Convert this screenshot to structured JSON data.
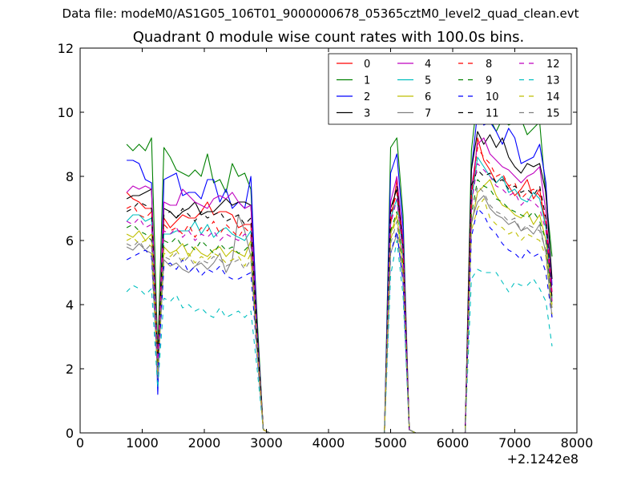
{
  "suptitle": "Data file: modeM0/AS1G05_106T01_9000000678_05365cztM0_level2_quad_clean.evt",
  "chart_data": {
    "type": "line",
    "title": "Quadrant 0 module wise count rates with 100.0s bins.",
    "xlabel": "",
    "ylabel": "",
    "x_offset_label": "+2.1242e8",
    "xlim": [
      0,
      8000
    ],
    "ylim": [
      0,
      12
    ],
    "xticks": [
      0,
      1000,
      2000,
      3000,
      4000,
      5000,
      6000,
      7000,
      8000
    ],
    "yticks": [
      0,
      2,
      4,
      6,
      8,
      10,
      12
    ],
    "grid": false,
    "legend_position": "top-right",
    "legend_columns": 4,
    "x": [
      750,
      850,
      950,
      1050,
      1150,
      1250,
      1350,
      1450,
      1550,
      1650,
      1750,
      1850,
      1950,
      2050,
      2150,
      2250,
      2350,
      2450,
      2550,
      2650,
      2750,
      2850,
      2950,
      3050,
      3150,
      4900,
      5000,
      5100,
      5200,
      5300,
      5400,
      6200,
      6300,
      6400,
      6500,
      6600,
      6700,
      6800,
      6900,
      7000,
      7100,
      7200,
      7300,
      7400,
      7500,
      7600
    ],
    "series": [
      {
        "name": "0",
        "color": "#ff0000",
        "dash": "solid",
        "values": [
          7.5,
          7.3,
          7.2,
          7.0,
          7.0,
          2.5,
          6.7,
          6.4,
          6.6,
          6.8,
          6.7,
          6.7,
          6.9,
          7.2,
          6.8,
          6.9,
          6.9,
          6.8,
          6.4,
          6.5,
          6.5,
          3.0,
          0.1,
          0.0,
          0.0,
          0.0,
          6.5,
          7.9,
          6.0,
          0.1,
          0.0,
          0.0,
          7.0,
          9.2,
          8.5,
          8.2,
          7.8,
          8.0,
          7.7,
          7.4,
          7.6,
          7.9,
          7.3,
          7.6,
          6.4,
          4.1
        ]
      },
      {
        "name": "1",
        "color": "#008000",
        "dash": "solid",
        "values": [
          9.0,
          8.8,
          9.0,
          8.8,
          9.2,
          2.5,
          8.9,
          8.6,
          8.2,
          8.1,
          8.0,
          8.2,
          8.0,
          8.7,
          7.8,
          7.9,
          7.5,
          8.4,
          8.0,
          8.1,
          7.6,
          3.6,
          0.1,
          0.0,
          0.0,
          0.0,
          8.9,
          9.2,
          6.8,
          0.1,
          0.0,
          0.0,
          8.8,
          10.5,
          10.2,
          9.8,
          9.4,
          9.8,
          9.6,
          9.7,
          9.8,
          9.3,
          9.5,
          9.7,
          7.4,
          5.5
        ]
      },
      {
        "name": "2",
        "color": "#0000ff",
        "dash": "solid",
        "values": [
          8.5,
          8.5,
          8.4,
          7.9,
          7.8,
          1.2,
          7.9,
          8.0,
          8.1,
          7.4,
          7.5,
          7.5,
          7.3,
          7.9,
          7.9,
          7.2,
          7.6,
          7.0,
          7.2,
          7.0,
          8.0,
          3.3,
          0.1,
          0.0,
          0.0,
          0.0,
          8.1,
          8.7,
          6.4,
          0.1,
          0.0,
          0.0,
          8.2,
          10.0,
          9.6,
          9.7,
          9.4,
          9.0,
          9.5,
          9.2,
          8.4,
          8.5,
          8.6,
          9.0,
          7.8,
          4.6
        ]
      },
      {
        "name": "3",
        "color": "#000000",
        "dash": "solid",
        "values": [
          7.3,
          7.4,
          7.4,
          7.5,
          7.6,
          2.0,
          7.0,
          6.9,
          6.7,
          6.9,
          7.0,
          7.2,
          6.8,
          6.9,
          6.9,
          7.1,
          7.3,
          7.1,
          7.2,
          7.2,
          7.1,
          3.2,
          0.1,
          0.0,
          0.0,
          0.0,
          7.0,
          7.6,
          5.9,
          0.1,
          0.0,
          0.0,
          8.2,
          9.4,
          9.0,
          9.3,
          8.9,
          9.2,
          8.6,
          8.3,
          8.1,
          8.4,
          8.3,
          8.4,
          7.5,
          4.8
        ]
      },
      {
        "name": "4",
        "color": "#bf00bf",
        "dash": "solid",
        "values": [
          7.5,
          7.7,
          7.6,
          7.7,
          7.6,
          2.2,
          7.2,
          7.1,
          7.1,
          7.6,
          7.4,
          7.2,
          7.1,
          7.0,
          7.3,
          7.4,
          7.3,
          7.5,
          7.2,
          7.0,
          7.1,
          3.1,
          0.1,
          0.0,
          0.0,
          0.0,
          7.2,
          8.0,
          6.0,
          0.1,
          0.0,
          0.0,
          7.6,
          9.0,
          9.2,
          8.7,
          8.5,
          8.3,
          8.2,
          8.0,
          7.8,
          8.0,
          8.1,
          8.3,
          6.9,
          4.4
        ]
      },
      {
        "name": "5",
        "color": "#00bfbf",
        "dash": "solid",
        "values": [
          6.6,
          6.8,
          6.8,
          6.6,
          6.7,
          2.1,
          6.2,
          6.2,
          6.3,
          6.3,
          6.3,
          6.6,
          6.2,
          6.5,
          6.1,
          6.3,
          6.4,
          6.2,
          6.1,
          6.0,
          6.3,
          2.9,
          0.1,
          0.0,
          0.0,
          0.0,
          6.7,
          7.3,
          5.5,
          0.1,
          0.0,
          0.0,
          7.2,
          8.6,
          8.3,
          8.0,
          7.8,
          8.0,
          7.5,
          7.6,
          7.3,
          7.2,
          7.5,
          7.3,
          6.4,
          4.2
        ]
      },
      {
        "name": "6",
        "color": "#bfbf00",
        "dash": "solid",
        "values": [
          6.2,
          6.1,
          6.3,
          6.0,
          6.2,
          1.9,
          5.8,
          5.6,
          5.7,
          5.9,
          5.5,
          5.8,
          5.6,
          5.5,
          5.7,
          5.8,
          5.5,
          5.7,
          5.6,
          5.5,
          6.0,
          2.7,
          0.1,
          0.0,
          0.0,
          0.0,
          6.2,
          6.8,
          5.1,
          0.1,
          0.0,
          0.0,
          6.5,
          7.5,
          7.7,
          7.9,
          7.4,
          7.1,
          7.0,
          6.8,
          6.7,
          6.9,
          6.5,
          6.8,
          6.0,
          4.0
        ]
      },
      {
        "name": "7",
        "color": "#808080",
        "dash": "solid",
        "values": [
          5.8,
          5.7,
          5.9,
          5.7,
          5.6,
          1.7,
          5.4,
          5.2,
          5.3,
          5.1,
          5.0,
          5.2,
          5.3,
          5.1,
          5.3,
          5.6,
          5.0,
          5.4,
          6.8,
          6.3,
          5.5,
          2.5,
          0.1,
          0.0,
          0.0,
          0.0,
          5.6,
          6.2,
          4.8,
          0.1,
          0.0,
          0.0,
          6.6,
          7.2,
          7.4,
          7.0,
          6.8,
          6.7,
          6.5,
          6.6,
          6.3,
          6.4,
          6.2,
          6.5,
          5.6,
          3.6
        ]
      },
      {
        "name": "8",
        "color": "#ff0000",
        "dash": "dashed",
        "values": [
          7.0,
          7.1,
          6.8,
          6.7,
          6.9,
          2.3,
          6.5,
          6.3,
          6.4,
          6.2,
          6.5,
          6.1,
          6.4,
          6.3,
          6.6,
          6.2,
          6.5,
          6.3,
          6.1,
          6.4,
          6.2,
          2.9,
          0.1,
          0.0,
          0.0,
          0.0,
          6.8,
          7.5,
          5.7,
          0.1,
          0.0,
          0.0,
          7.4,
          8.9,
          8.6,
          8.4,
          8.0,
          8.1,
          7.7,
          7.8,
          7.3,
          7.5,
          7.6,
          7.4,
          6.6,
          4.3
        ]
      },
      {
        "name": "9",
        "color": "#008000",
        "dash": "dashed",
        "values": [
          6.4,
          6.5,
          6.3,
          6.2,
          6.0,
          2.0,
          6.0,
          5.9,
          6.1,
          5.8,
          5.9,
          5.7,
          6.0,
          5.8,
          5.6,
          5.9,
          5.7,
          5.8,
          5.6,
          5.7,
          5.9,
          2.7,
          0.1,
          0.0,
          0.0,
          0.0,
          6.3,
          6.9,
          5.2,
          0.1,
          0.0,
          0.0,
          6.8,
          7.9,
          7.7,
          7.6,
          7.3,
          7.2,
          7.0,
          6.9,
          6.8,
          6.7,
          6.9,
          6.6,
          6.0,
          3.9
        ]
      },
      {
        "name": "10",
        "color": "#0000ff",
        "dash": "dashed",
        "values": [
          5.4,
          5.5,
          5.6,
          5.7,
          5.5,
          1.7,
          5.2,
          5.3,
          5.1,
          5.4,
          5.0,
          5.2,
          4.9,
          5.1,
          5.0,
          5.2,
          4.9,
          4.8,
          4.8,
          4.9,
          5.0,
          2.4,
          0.1,
          0.0,
          0.0,
          0.0,
          5.6,
          6.3,
          4.7,
          0.1,
          0.0,
          0.0,
          6.1,
          7.0,
          6.8,
          6.4,
          6.2,
          5.9,
          5.7,
          5.6,
          5.4,
          5.7,
          5.5,
          5.6,
          5.0,
          3.6
        ]
      },
      {
        "name": "11",
        "color": "#000000",
        "dash": "dashed",
        "values": [
          6.9,
          7.0,
          7.2,
          7.1,
          7.0,
          2.2,
          6.8,
          6.9,
          6.7,
          7.0,
          6.8,
          6.6,
          6.9,
          6.7,
          6.8,
          6.9,
          6.6,
          6.7,
          6.8,
          6.5,
          6.7,
          3.0,
          0.1,
          0.0,
          0.0,
          0.0,
          6.9,
          7.7,
          5.8,
          0.1,
          0.0,
          0.0,
          7.7,
          8.2,
          8.0,
          8.1,
          7.8,
          7.9,
          7.6,
          7.7,
          7.5,
          7.6,
          7.4,
          7.7,
          6.7,
          4.2
        ]
      },
      {
        "name": "12",
        "color": "#bf00bf",
        "dash": "dashed",
        "values": [
          6.6,
          6.5,
          6.7,
          6.4,
          6.5,
          2.1,
          6.3,
          6.2,
          6.4,
          6.1,
          6.3,
          6.0,
          6.2,
          6.1,
          6.3,
          6.0,
          6.2,
          6.1,
          6.0,
          6.2,
          6.1,
          2.8,
          0.1,
          0.0,
          0.0,
          0.0,
          6.5,
          7.3,
          5.5,
          0.1,
          0.0,
          0.0,
          7.1,
          8.4,
          8.2,
          8.0,
          7.7,
          7.6,
          7.4,
          7.5,
          7.1,
          7.3,
          7.2,
          7.0,
          6.3,
          4.1
        ]
      },
      {
        "name": "13",
        "color": "#00bfbf",
        "dash": "dashed",
        "values": [
          4.4,
          4.6,
          4.5,
          4.3,
          4.5,
          1.4,
          4.2,
          4.1,
          4.3,
          3.9,
          4.0,
          3.8,
          3.9,
          3.7,
          3.6,
          3.9,
          3.6,
          3.7,
          3.8,
          3.6,
          3.8,
          2.0,
          0.1,
          0.0,
          0.0,
          0.0,
          4.9,
          6.0,
          4.3,
          0.1,
          0.0,
          0.0,
          4.8,
          5.1,
          5.0,
          5.0,
          5.0,
          4.7,
          4.4,
          4.7,
          4.6,
          4.6,
          4.8,
          4.5,
          4.1,
          2.7
        ]
      },
      {
        "name": "14",
        "color": "#bfbf00",
        "dash": "dashed",
        "values": [
          6.0,
          6.1,
          5.9,
          6.0,
          5.8,
          1.8,
          5.6,
          5.5,
          5.7,
          5.4,
          5.6,
          5.3,
          5.5,
          5.4,
          5.6,
          5.5,
          5.3,
          5.4,
          5.5,
          5.2,
          5.6,
          2.6,
          0.1,
          0.0,
          0.0,
          0.0,
          6.0,
          6.8,
          5.0,
          0.1,
          0.0,
          0.0,
          6.3,
          7.0,
          7.3,
          6.7,
          6.5,
          6.4,
          6.2,
          6.3,
          6.0,
          6.2,
          6.1,
          6.0,
          5.5,
          3.7
        ]
      },
      {
        "name": "15",
        "color": "#808080",
        "dash": "dashed",
        "values": [
          5.9,
          5.8,
          6.0,
          5.7,
          5.9,
          1.8,
          5.5,
          5.4,
          5.6,
          5.3,
          5.5,
          5.2,
          5.4,
          5.3,
          5.5,
          5.4,
          5.2,
          5.3,
          5.4,
          5.1,
          5.4,
          2.5,
          0.1,
          0.0,
          0.0,
          0.0,
          5.9,
          6.6,
          4.9,
          0.1,
          0.0,
          0.0,
          6.4,
          7.7,
          7.5,
          7.1,
          6.9,
          6.8,
          6.6,
          6.7,
          6.3,
          6.5,
          6.4,
          6.3,
          5.7,
          3.9
        ]
      }
    ]
  }
}
